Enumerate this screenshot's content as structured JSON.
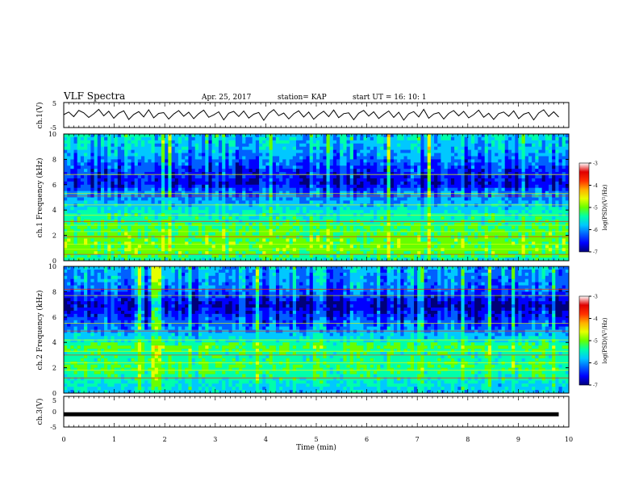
{
  "header": {
    "title": "VLF Spectra",
    "date": "Apr. 25, 2017",
    "station": "station= KAP",
    "start_time": "start  UT =   16: 10: 1"
  },
  "chart_data": [
    {
      "id": "ch1-waveform",
      "type": "line",
      "ylabel": "ch.1(V)",
      "ylim": [
        -5,
        5
      ],
      "yticks": [
        "5",
        "-5"
      ],
      "xlim": [
        0,
        10
      ],
      "x_end": 9.8,
      "series": [
        {
          "color": "#000000",
          "values": [
            0.2,
            1.5,
            -0.8,
            2.3,
            1.1,
            -1.2,
            0.6,
            2.8,
            -0.4,
            1.9,
            -1.6,
            0.9,
            2.1,
            -2.2,
            0.3,
            1.7,
            -0.9,
            2.6,
            -1.4,
            0.8,
            1.2,
            -2.0,
            0.5,
            2.2,
            -0.6,
            1.4,
            -1.8,
            0.7,
            2.4,
            -1.1,
            0.1,
            1.6,
            -2.4,
            0.9,
            1.8,
            -0.7,
            2.0,
            -1.5,
            0.4,
            1.3,
            -2.6,
            0.8,
            2.7,
            -0.3,
            1.0,
            -1.9,
            0.6,
            2.1,
            -1.0,
            1.5,
            -2.1,
            0.2,
            1.9,
            -0.8,
            2.5,
            -1.3,
            0.7,
            1.1,
            -2.3,
            0.9,
            2.3,
            -0.5,
            1.6,
            -1.7,
            0.3,
            2.0,
            -1.2,
            1.4,
            -2.5,
            0.6,
            1.7,
            -0.9,
            2.8,
            -1.6,
            0.5,
            1.2,
            -2.0,
            0.8,
            2.2,
            -0.4,
            1.8,
            -1.4,
            0.2,
            2.4,
            -1.1,
            0.9,
            -2.2,
            0.7,
            1.5,
            -0.6,
            2.1,
            -1.8,
            0.4,
            1.3,
            -2.4,
            1.0,
            2.6,
            -0.7,
            1.6,
            -1.0
          ]
        }
      ]
    },
    {
      "id": "ch1-spectrogram",
      "type": "heatmap",
      "ylabel": "ch.1\nFrequency (kHz)",
      "ylim": [
        0,
        10
      ],
      "yticks": [
        "0",
        "2",
        "4",
        "6",
        "8",
        "10"
      ],
      "xlim": [
        0,
        10
      ],
      "colorbar": {
        "label": "log(PSD)(V²/Hz)",
        "range": [
          -7,
          -3
        ],
        "ticks": [
          "-3",
          "-4",
          "-5",
          "-6",
          "-7"
        ],
        "colors": [
          "#00007a",
          "#0000ff",
          "#0060ff",
          "#00c8ff",
          "#00ffaa",
          "#66ff00",
          "#e6ff00",
          "#ffb000",
          "#ff3000",
          "#e00000",
          "#ffffff"
        ]
      },
      "band_profile": [
        {
          "f": 0.0,
          "v": -5.3
        },
        {
          "f": 0.6,
          "v": -4.9
        },
        {
          "f": 1.2,
          "v": -4.8
        },
        {
          "f": 2.0,
          "v": -4.9
        },
        {
          "f": 3.0,
          "v": -5.1
        },
        {
          "f": 4.0,
          "v": -5.4
        },
        {
          "f": 4.8,
          "v": -5.8
        },
        {
          "f": 5.4,
          "v": -5.9
        },
        {
          "f": 6.0,
          "v": -6.5
        },
        {
          "f": 7.0,
          "v": -6.3
        },
        {
          "f": 8.0,
          "v": -5.9
        },
        {
          "f": 9.0,
          "v": -5.6
        },
        {
          "f": 10.0,
          "v": -5.5
        }
      ],
      "lines_khz": [
        0.5,
        0.9,
        1.3,
        1.9,
        2.3,
        2.8,
        3.1,
        3.6,
        4.4,
        5.1,
        5.3,
        6.8
      ]
    },
    {
      "id": "ch2-spectrogram",
      "type": "heatmap",
      "ylabel": "ch.2\nFrequency (kHz)",
      "ylim": [
        0,
        10
      ],
      "yticks": [
        "0",
        "2",
        "4",
        "6",
        "8",
        "10"
      ],
      "xlim": [
        0,
        10
      ],
      "colorbar": {
        "label": "log(PSD)(V²/Hz)",
        "range": [
          -7,
          -3
        ],
        "ticks": [
          "-3",
          "-4",
          "-5",
          "-6",
          "-7"
        ],
        "colors": [
          "#00007a",
          "#0000ff",
          "#0060ff",
          "#00c8ff",
          "#00ffaa",
          "#66ff00",
          "#e6ff00",
          "#ffb000",
          "#ff3000",
          "#e00000",
          "#ffffff"
        ]
      },
      "band_profile": [
        {
          "f": 0.0,
          "v": -5.6
        },
        {
          "f": 1.0,
          "v": -5.3
        },
        {
          "f": 2.0,
          "v": -5.0
        },
        {
          "f": 3.0,
          "v": -5.2
        },
        {
          "f": 3.6,
          "v": -4.9
        },
        {
          "f": 4.4,
          "v": -5.5
        },
        {
          "f": 5.0,
          "v": -5.8
        },
        {
          "f": 6.0,
          "v": -6.2
        },
        {
          "f": 7.0,
          "v": -6.6
        },
        {
          "f": 8.0,
          "v": -6.0
        },
        {
          "f": 9.0,
          "v": -5.8
        },
        {
          "f": 10.0,
          "v": -5.6
        }
      ],
      "lines_khz": [
        1.2,
        1.8,
        2.4,
        3.0,
        3.3,
        4.2,
        4.9,
        5.5,
        7.7,
        8.2
      ]
    },
    {
      "id": "ch3-waveform",
      "type": "line",
      "ylabel": "ch.3(V)",
      "ylim": [
        -5,
        5
      ],
      "yticks": [
        "5",
        "0",
        "-5"
      ],
      "xlim": [
        0,
        10
      ],
      "xticks": [
        "0",
        "1",
        "2",
        "3",
        "4",
        "5",
        "6",
        "7",
        "8",
        "9",
        "10"
      ],
      "xlabel": "Time (min)",
      "series": [
        {
          "color": "#000000",
          "x": [
            0,
            9.8
          ],
          "values": [
            -1,
            -1
          ]
        }
      ]
    }
  ]
}
